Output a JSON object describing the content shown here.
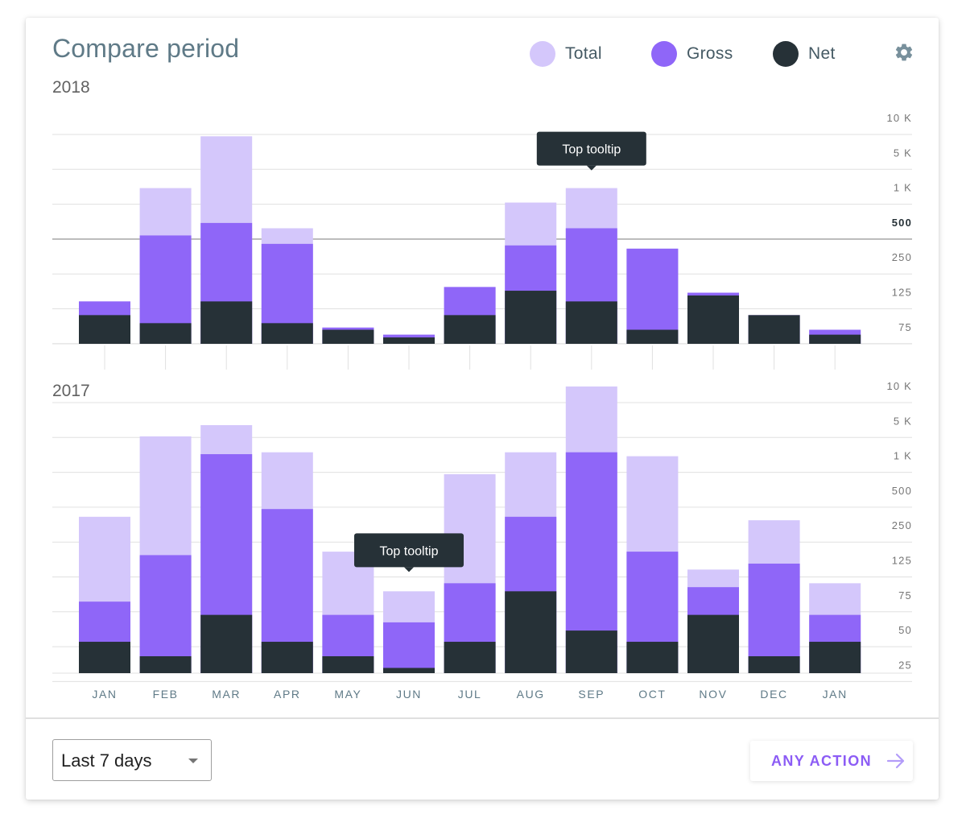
{
  "header": {
    "title": "Compare period",
    "legend": [
      {
        "label": "Total",
        "color": "#d4c7fb"
      },
      {
        "label": "Gross",
        "color": "#8f66f8"
      },
      {
        "label": "Net",
        "color": "#263137"
      }
    ],
    "settings_icon": "gear-icon"
  },
  "colors": {
    "total": "#d4c7fb",
    "gross": "#8f66f8",
    "net": "#263137",
    "grid": "#e0e0e0",
    "axis_text": "#757575",
    "month_text": "#5f7a87",
    "tooltip_bg": "#263137"
  },
  "chart_data": [
    {
      "type": "bar",
      "title": "2018",
      "stacked": "overlay",
      "y_scale": "log",
      "y_ticks": [
        "75",
        "125",
        "250",
        "500",
        "1 K",
        "5 K",
        "10 K"
      ],
      "highlight_tick": "500",
      "categories": [
        "JAN",
        "FEB",
        "MAR",
        "APR",
        "MAY",
        "JUN",
        "JUL",
        "AUG",
        "SEP",
        "OCT",
        "NOV",
        "DEC",
        "JAN"
      ],
      "series": [
        {
          "name": "Total",
          "values": [
            110,
            1000,
            7000,
            450,
            75,
            60,
            140,
            750,
            1000,
            300,
            125,
            90,
            70
          ]
        },
        {
          "name": "Gross",
          "values": [
            110,
            390,
            500,
            330,
            75,
            60,
            140,
            320,
            450,
            300,
            125,
            90,
            70
          ]
        },
        {
          "name": "Net",
          "values": [
            90,
            80,
            110,
            80,
            70,
            55,
            90,
            130,
            110,
            70,
            120,
            90,
            60
          ]
        }
      ],
      "tooltip": {
        "text": "Top tooltip",
        "category_index": 8
      }
    },
    {
      "type": "bar",
      "title": "2017",
      "stacked": "overlay",
      "y_scale": "log",
      "y_ticks": [
        "25",
        "50",
        "75",
        "125",
        "250",
        "500",
        "1 K",
        "5 K",
        "10 K"
      ],
      "categories": [
        "JAN",
        "FEB",
        "MAR",
        "APR",
        "MAY",
        "JUN",
        "JUL",
        "AUG",
        "SEP",
        "OCT",
        "NOV",
        "DEC",
        "JAN"
      ],
      "series": [
        {
          "name": "Total",
          "values": [
            300,
            2500,
            4200,
            1200,
            150,
            80,
            700,
            1200,
            10000,
            1000,
            110,
            280,
            90
          ]
        },
        {
          "name": "Gross",
          "values": [
            70,
            140,
            1100,
            350,
            60,
            55,
            90,
            300,
            1200,
            150,
            85,
            120,
            60
          ]
        },
        {
          "name": "Net",
          "values": [
            40,
            30,
            60,
            40,
            30,
            20,
            40,
            80,
            50,
            40,
            60,
            30,
            40
          ]
        }
      ],
      "tooltip": {
        "text": "Top tooltip",
        "category_index": 5
      }
    }
  ],
  "footer": {
    "select_value": "Last 7 days",
    "action_label": "ANY ACTION"
  }
}
